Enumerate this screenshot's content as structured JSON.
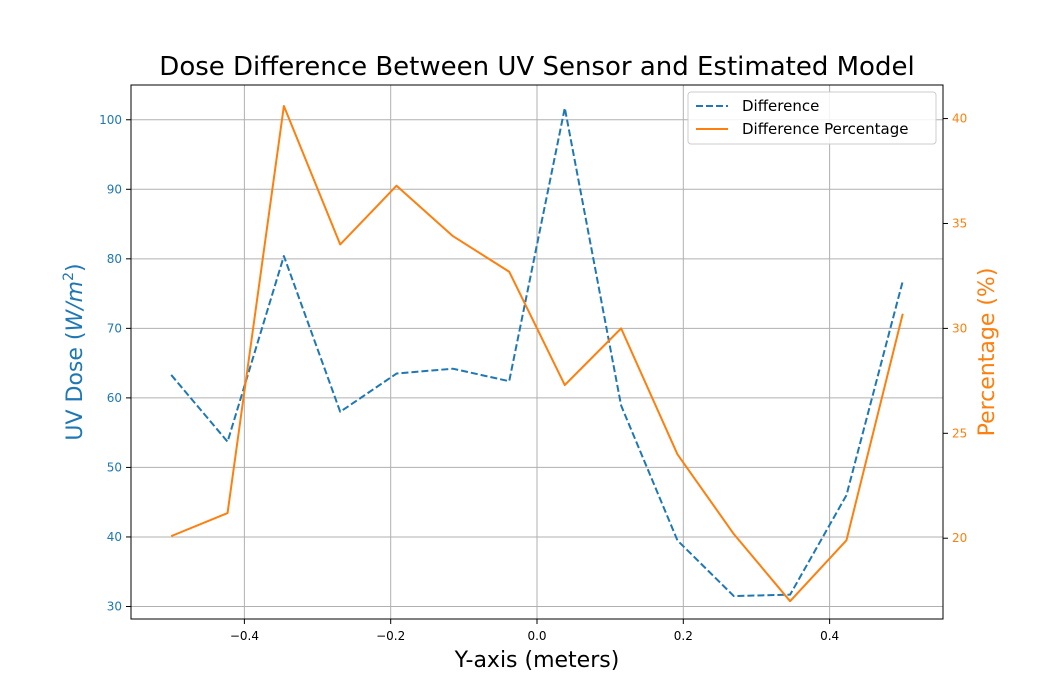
{
  "chart_data": {
    "type": "line",
    "title": "Dose Difference Between UV Sensor and Estimated Model",
    "xlabel": "Y-axis (meters)",
    "ylabel_left_main": "UV Dose (",
    "ylabel_left_math": "W/m",
    "ylabel_left_sup": "2",
    "ylabel_left_close": ")",
    "ylabel_right": "Percentage (%)",
    "xlim": [
      -0.555,
      0.555
    ],
    "ylim_left": [
      28.2,
      105.0
    ],
    "ylim_right": [
      16.15,
      41.6
    ],
    "x_ticks": [
      -0.4,
      -0.2,
      0.0,
      0.2,
      0.4
    ],
    "x_tick_labels": [
      "−0.4",
      "−0.2",
      "0.0",
      "0.2",
      "0.4"
    ],
    "y_left_ticks": [
      30,
      40,
      50,
      60,
      70,
      80,
      90,
      100
    ],
    "y_left_tick_labels": [
      "30",
      "40",
      "50",
      "60",
      "70",
      "80",
      "90",
      "100"
    ],
    "y_right_ticks": [
      20,
      25,
      30,
      35,
      40
    ],
    "y_right_tick_labels": [
      "20",
      "25",
      "30",
      "35",
      "40"
    ],
    "grid": true,
    "legend_position": "top-right",
    "colors": {
      "left": "#1f77b4",
      "right": "#ff7f0e"
    },
    "x": [
      -0.5,
      -0.423,
      -0.346,
      -0.269,
      -0.192,
      -0.115,
      -0.038,
      0.038,
      0.115,
      0.192,
      0.269,
      0.346,
      0.423,
      0.5
    ],
    "series": [
      {
        "name": "Difference",
        "axis": "left",
        "style": "dashed",
        "color": "#1f77b4",
        "values": [
          63.3,
          53.7,
          80.4,
          58.0,
          63.5,
          64.2,
          62.4,
          101.7,
          58.9,
          39.5,
          31.5,
          31.7,
          46.0,
          76.8
        ]
      },
      {
        "name": "Difference Percentage",
        "axis": "right",
        "style": "solid",
        "color": "#ff7f0e",
        "values": [
          20.1,
          21.2,
          40.6,
          34.0,
          36.8,
          34.4,
          32.7,
          27.3,
          30.0,
          24.0,
          20.2,
          17.0,
          19.9,
          30.7
        ]
      }
    ]
  }
}
